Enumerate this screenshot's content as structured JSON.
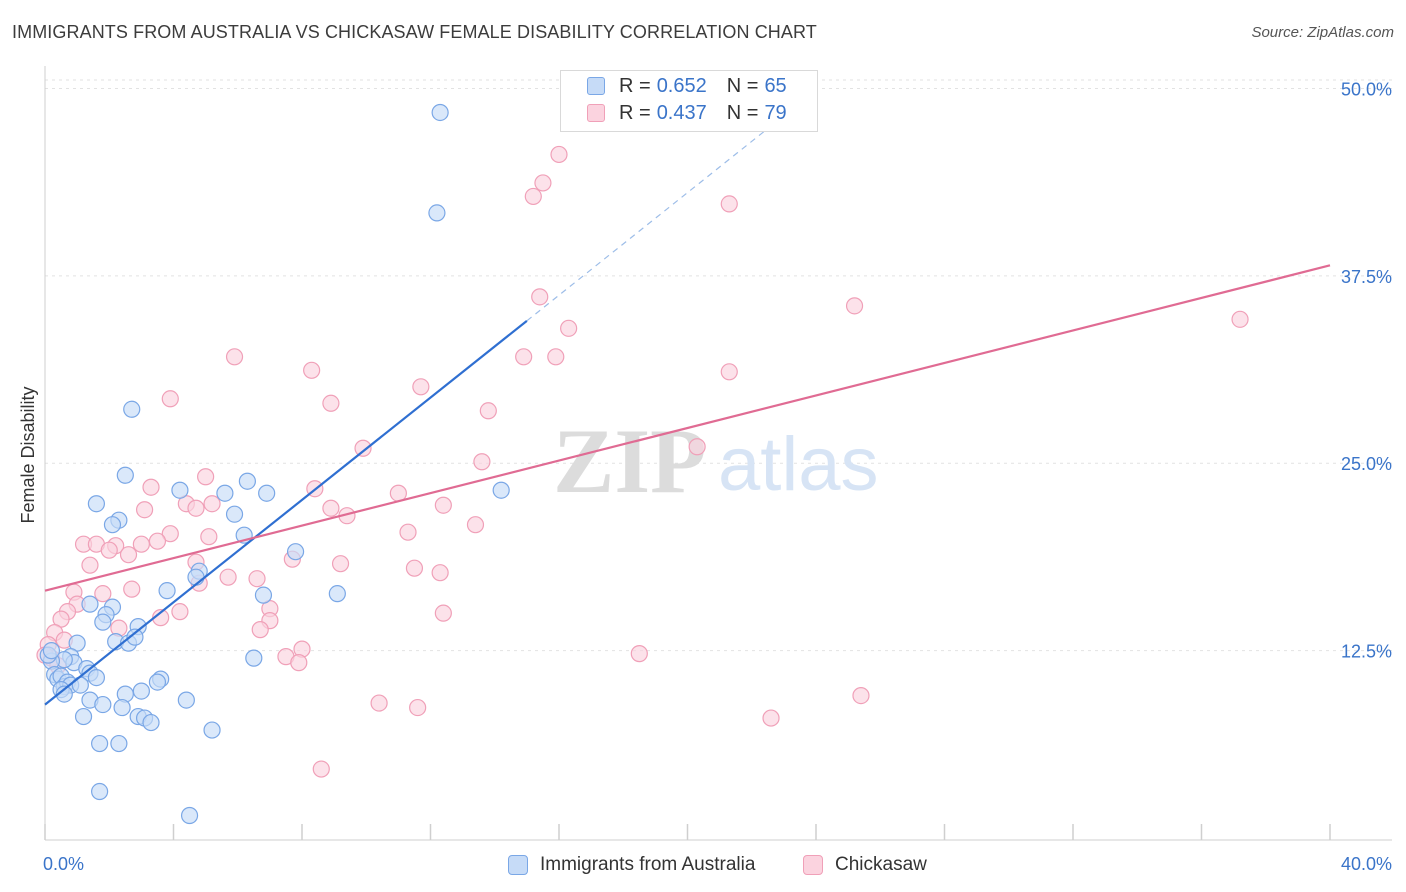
{
  "title": "IMMIGRANTS FROM AUSTRALIA VS CHICKASAW FEMALE DISABILITY CORRELATION CHART",
  "source": "Source: ZipAtlas.com",
  "watermark": {
    "zip": "ZIP",
    "atlas": "atlas"
  },
  "legend_top": [
    {
      "r_label": "R =",
      "r_value": "0.652",
      "n_label": "N =",
      "n_value": "65"
    },
    {
      "r_label": "R =",
      "r_value": "0.437",
      "n_label": "N =",
      "n_value": "79"
    }
  ],
  "legend_bottom": [
    "Immigrants from Australia",
    "Chickasaw"
  ],
  "chart_data": {
    "type": "scatter",
    "title": "IMMIGRANTS FROM AUSTRALIA VS CHICKASAW FEMALE DISABILITY CORRELATION CHART",
    "xlabel": "",
    "ylabel": "Female Disability",
    "xlim": [
      0,
      40
    ],
    "ylim": [
      0,
      51.5
    ],
    "x_tick_labels": [
      {
        "value": 0,
        "label": "0.0%"
      },
      {
        "value": 40,
        "label": "40.0%"
      }
    ],
    "y_tick_labels": [
      {
        "value": 12.5,
        "label": "12.5%"
      },
      {
        "value": 25,
        "label": "25.0%"
      },
      {
        "value": 37.5,
        "label": "37.5%"
      },
      {
        "value": 50,
        "label": "50.0%"
      }
    ],
    "colors": {
      "australia": "#7aa7e6",
      "australia_fill": "#c6dbf7",
      "chickasaw": "#f0a0b8",
      "chickasaw_fill": "#fbd3df",
      "australia_line": "#2f6fd1",
      "chickasaw_line": "#e06b93"
    },
    "series": [
      {
        "name": "Immigrants from Australia",
        "R": 0.652,
        "N": 65,
        "trend": {
          "x0": 0,
          "y0": 8.9,
          "x1": 15,
          "y1": 34.5,
          "dash_to_x": 22.6,
          "dash_to_y": 47.5
        },
        "points": [
          [
            12.3,
            48.4
          ],
          [
            12.2,
            41.7
          ],
          [
            2.7,
            28.6
          ],
          [
            2.5,
            24.2
          ],
          [
            4.2,
            23.2
          ],
          [
            5.6,
            23.0
          ],
          [
            6.3,
            23.8
          ],
          [
            6.9,
            23.0
          ],
          [
            1.6,
            22.3
          ],
          [
            14.2,
            23.2
          ],
          [
            5.9,
            21.6
          ],
          [
            2.3,
            21.2
          ],
          [
            2.1,
            20.9
          ],
          [
            6.2,
            20.2
          ],
          [
            7.8,
            19.1
          ],
          [
            4.8,
            17.8
          ],
          [
            4.7,
            17.4
          ],
          [
            3.8,
            16.5
          ],
          [
            6.8,
            16.2
          ],
          [
            9.1,
            16.3
          ],
          [
            1.4,
            15.6
          ],
          [
            2.1,
            15.4
          ],
          [
            1.9,
            14.9
          ],
          [
            1.8,
            14.4
          ],
          [
            2.9,
            14.1
          ],
          [
            2.2,
            13.1
          ],
          [
            2.6,
            13.0
          ],
          [
            2.8,
            13.4
          ],
          [
            1.0,
            13.0
          ],
          [
            0.8,
            12.1
          ],
          [
            0.9,
            11.7
          ],
          [
            0.6,
            11.9
          ],
          [
            1.3,
            11.3
          ],
          [
            1.4,
            11.0
          ],
          [
            0.2,
            11.8
          ],
          [
            0.1,
            12.2
          ],
          [
            0.3,
            10.9
          ],
          [
            0.4,
            10.6
          ],
          [
            0.5,
            10.8
          ],
          [
            0.6,
            10.1
          ],
          [
            0.7,
            10.4
          ],
          [
            0.8,
            10.2
          ],
          [
            1.1,
            10.2
          ],
          [
            1.6,
            10.7
          ],
          [
            0.5,
            9.9
          ],
          [
            0.6,
            9.6
          ],
          [
            1.4,
            9.2
          ],
          [
            1.8,
            8.9
          ],
          [
            2.5,
            9.6
          ],
          [
            3.0,
            9.8
          ],
          [
            2.4,
            8.7
          ],
          [
            2.9,
            8.1
          ],
          [
            3.1,
            8.0
          ],
          [
            3.3,
            7.7
          ],
          [
            3.6,
            10.6
          ],
          [
            3.5,
            10.4
          ],
          [
            4.4,
            9.2
          ],
          [
            6.5,
            12.0
          ],
          [
            1.2,
            8.1
          ],
          [
            1.7,
            6.3
          ],
          [
            2.3,
            6.3
          ],
          [
            5.2,
            7.2
          ],
          [
            1.7,
            3.1
          ],
          [
            4.5,
            1.5
          ],
          [
            0.2,
            12.5
          ]
        ]
      },
      {
        "name": "Chickasaw",
        "R": 0.437,
        "N": 79,
        "trend": {
          "x0": 0,
          "y0": 16.5,
          "x1": 40,
          "y1": 38.2
        },
        "points": [
          [
            16.0,
            45.6
          ],
          [
            15.5,
            43.7
          ],
          [
            15.2,
            42.8
          ],
          [
            21.3,
            42.3
          ],
          [
            15.4,
            36.1
          ],
          [
            25.2,
            35.5
          ],
          [
            37.2,
            34.6
          ],
          [
            16.3,
            34.0
          ],
          [
            5.9,
            32.1
          ],
          [
            14.9,
            32.1
          ],
          [
            15.9,
            32.1
          ],
          [
            8.3,
            31.2
          ],
          [
            21.3,
            31.1
          ],
          [
            11.7,
            30.1
          ],
          [
            3.9,
            29.3
          ],
          [
            8.9,
            29.0
          ],
          [
            13.8,
            28.5
          ],
          [
            20.3,
            26.1
          ],
          [
            9.9,
            26.0
          ],
          [
            13.6,
            25.1
          ],
          [
            5.0,
            24.1
          ],
          [
            3.3,
            23.4
          ],
          [
            8.4,
            23.3
          ],
          [
            11.0,
            23.0
          ],
          [
            4.4,
            22.3
          ],
          [
            5.2,
            22.3
          ],
          [
            4.7,
            22.0
          ],
          [
            3.1,
            21.9
          ],
          [
            9.4,
            21.5
          ],
          [
            8.9,
            22.0
          ],
          [
            12.4,
            22.2
          ],
          [
            13.4,
            20.9
          ],
          [
            3.9,
            20.3
          ],
          [
            5.1,
            20.1
          ],
          [
            11.3,
            20.4
          ],
          [
            1.2,
            19.6
          ],
          [
            1.6,
            19.6
          ],
          [
            2.2,
            19.5
          ],
          [
            3.0,
            19.6
          ],
          [
            3.5,
            19.8
          ],
          [
            2.0,
            19.2
          ],
          [
            2.6,
            18.9
          ],
          [
            4.7,
            18.4
          ],
          [
            1.4,
            18.2
          ],
          [
            7.7,
            18.6
          ],
          [
            9.2,
            18.3
          ],
          [
            11.5,
            18.0
          ],
          [
            12.3,
            17.7
          ],
          [
            5.7,
            17.4
          ],
          [
            6.6,
            17.3
          ],
          [
            4.8,
            17.0
          ],
          [
            0.9,
            16.4
          ],
          [
            1.8,
            16.3
          ],
          [
            2.7,
            16.6
          ],
          [
            1.0,
            15.6
          ],
          [
            0.7,
            15.1
          ],
          [
            3.6,
            14.7
          ],
          [
            4.2,
            15.1
          ],
          [
            7.0,
            15.3
          ],
          [
            12.4,
            15.0
          ],
          [
            0.5,
            14.6
          ],
          [
            7.0,
            14.5
          ],
          [
            0.3,
            13.7
          ],
          [
            6.7,
            13.9
          ],
          [
            2.3,
            14.0
          ],
          [
            8.0,
            12.6
          ],
          [
            7.5,
            12.1
          ],
          [
            7.9,
            11.7
          ],
          [
            18.5,
            12.3
          ],
          [
            0.1,
            12.9
          ],
          [
            0.2,
            12.0
          ],
          [
            0.0,
            12.2
          ],
          [
            10.4,
            9.0
          ],
          [
            11.6,
            8.7
          ],
          [
            25.4,
            9.5
          ],
          [
            22.6,
            8.0
          ],
          [
            8.6,
            4.6
          ],
          [
            0.4,
            11.5
          ],
          [
            0.6,
            13.2
          ]
        ]
      }
    ]
  }
}
